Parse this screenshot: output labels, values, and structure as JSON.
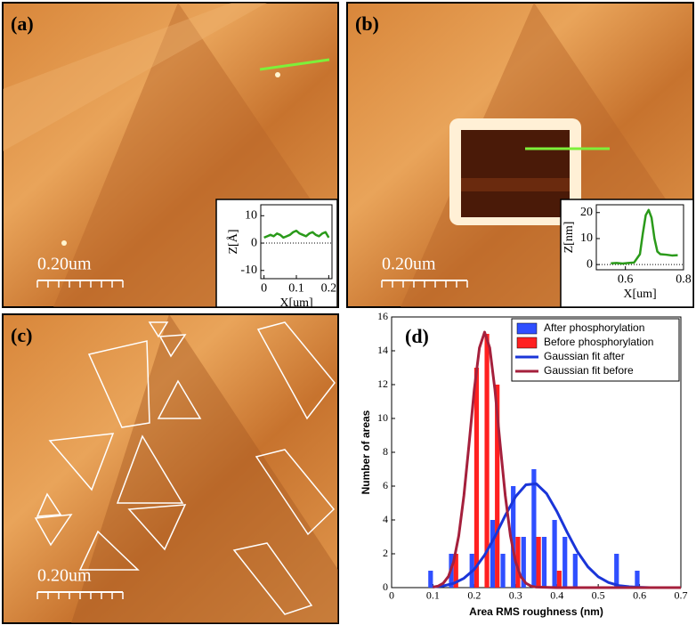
{
  "panels": [
    {
      "label": "(a)",
      "scale_bar": "0.20um"
    },
    {
      "label": "(b)",
      "scale_bar": "0.20um"
    },
    {
      "label": "(c)",
      "scale_bar": "0.20um"
    }
  ],
  "chart_data": [
    {
      "type": "line",
      "xlabel": "X[um]",
      "ylabel": "Z[Å]",
      "x": [
        0,
        0.01,
        0.02,
        0.03,
        0.04,
        0.05,
        0.06,
        0.07,
        0.08,
        0.09,
        0.1,
        0.11,
        0.12,
        0.13,
        0.14,
        0.15,
        0.16,
        0.17,
        0.18,
        0.19,
        0.2
      ],
      "series": [
        {
          "color": "#2a9a1a",
          "values": [
            2,
            2.5,
            3,
            2.5,
            3.5,
            3,
            2,
            2.5,
            3,
            4,
            4.5,
            3.5,
            3,
            2.5,
            3.5,
            4,
            3,
            2.5,
            3.5,
            4,
            2
          ]
        }
      ],
      "xlim": [
        -0.01,
        0.21
      ],
      "xticks": [
        0,
        0.1,
        0.2
      ],
      "ylim": [
        -13,
        14
      ],
      "yticks": [
        -10,
        0,
        10
      ]
    },
    {
      "type": "line",
      "xlabel": "X[um]",
      "ylabel": "Z[nm]",
      "x": [
        0.55,
        0.57,
        0.59,
        0.61,
        0.63,
        0.65,
        0.66,
        0.67,
        0.68,
        0.69,
        0.7,
        0.71,
        0.72,
        0.74,
        0.76,
        0.78
      ],
      "series": [
        {
          "color": "#2a9a1a",
          "values": [
            0.5,
            0.6,
            0.4,
            0.6,
            0.8,
            4,
            12,
            19,
            21,
            18,
            10,
            5,
            4,
            3.8,
            3.5,
            3.6
          ]
        }
      ],
      "xlim": [
        0.5,
        0.8
      ],
      "xticks": [
        0.6,
        0.8
      ],
      "ylim": [
        -2,
        23
      ],
      "yticks": [
        0,
        10,
        20
      ]
    },
    {
      "type": "bar",
      "label": "(d)",
      "xlabel": "Area RMS roughness (nm)",
      "ylabel": "Number of areas",
      "x": [
        0.1,
        0.125,
        0.15,
        0.175,
        0.2,
        0.225,
        0.25,
        0.275,
        0.3,
        0.325,
        0.35,
        0.375,
        0.4,
        0.425,
        0.45,
        0.475,
        0.5,
        0.525,
        0.55,
        0.575,
        0.6
      ],
      "series": [
        {
          "name": "After phosphorylation",
          "color": "#2f4fff",
          "values": [
            1,
            0,
            2,
            0,
            2,
            0,
            4,
            2,
            6,
            3,
            7,
            3,
            4,
            3,
            2,
            0,
            0,
            0,
            2,
            0,
            1
          ]
        },
        {
          "name": "Before phosphorylation",
          "color": "#ff2020",
          "values": [
            0,
            0,
            2,
            0,
            13,
            15,
            12,
            0,
            3,
            0,
            3,
            0,
            1,
            0,
            0,
            0,
            0,
            0,
            0,
            0,
            0
          ]
        }
      ],
      "fits": [
        {
          "name": "Gaussian fit after",
          "color": "#1a35d8",
          "x": [
            0.1,
            0.125,
            0.15,
            0.175,
            0.2,
            0.225,
            0.25,
            0.275,
            0.3,
            0.325,
            0.35,
            0.375,
            0.4,
            0.425,
            0.45,
            0.475,
            0.5,
            0.525,
            0.55,
            0.575,
            0.6,
            0.625,
            0.65,
            0.675,
            0.7
          ],
          "values": [
            0.04,
            0.1,
            0.25,
            0.55,
            1.08,
            1.92,
            3.02,
            4.26,
            5.38,
            6.08,
            6.14,
            5.56,
            4.5,
            3.26,
            2.11,
            1.23,
            0.64,
            0.3,
            0.12,
            0.05,
            0.02,
            0,
            0,
            0,
            0
          ]
        },
        {
          "name": "Gaussian fit before",
          "color": "#a5203c",
          "x": [
            0.1,
            0.1125,
            0.125,
            0.1375,
            0.15,
            0.1625,
            0.175,
            0.1875,
            0.2,
            0.2125,
            0.225,
            0.2375,
            0.25,
            0.2625,
            0.275,
            0.2875,
            0.3,
            0.3125,
            0.325,
            0.3375,
            0.35,
            0.4,
            0.5,
            0.6,
            0.7
          ],
          "values": [
            0.03,
            0.09,
            0.26,
            0.66,
            1.52,
            3.07,
            5.45,
            8.51,
            11.7,
            14.17,
            15.1,
            14.17,
            11.7,
            8.51,
            5.45,
            3.07,
            1.52,
            0.66,
            0.26,
            0.09,
            0.03,
            0,
            0,
            0,
            0
          ]
        }
      ],
      "xlim": [
        0,
        0.7
      ],
      "xticks": [
        0,
        0.1,
        0.2,
        0.3,
        0.4,
        0.5,
        0.6,
        0.7
      ],
      "ylim": [
        0,
        16
      ],
      "yticks": [
        0,
        2,
        4,
        6,
        8,
        10,
        12,
        14,
        16
      ],
      "legend": "upper right"
    }
  ]
}
